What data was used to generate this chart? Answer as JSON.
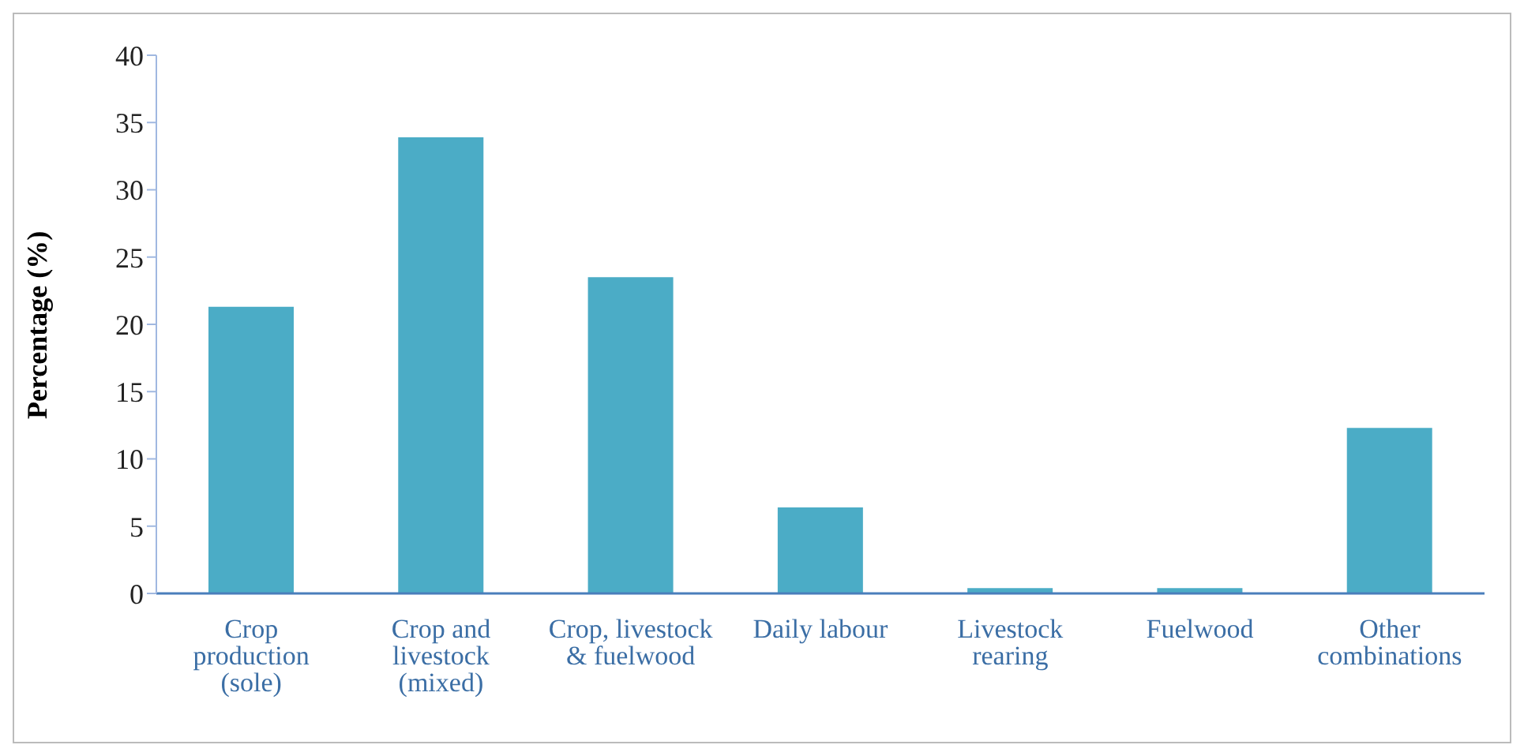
{
  "chart_data": {
    "type": "bar",
    "ylabel": "Percentage (%)",
    "categories": [
      "Crop production (sole)",
      "Crop and livestock (mixed)",
      "Crop, livestock & fuelwood",
      "Daily labour",
      "Livestock rearing",
      "Fuelwood",
      "Other combinations"
    ],
    "values": [
      21.3,
      33.9,
      23.5,
      6.4,
      0.4,
      0.4,
      12.3
    ],
    "color": "#4bacc6",
    "ylim": [
      0,
      40
    ],
    "yticks": [
      0,
      5,
      10,
      15,
      20,
      25,
      30,
      35,
      40
    ],
    "grid": false,
    "legend": false
  }
}
